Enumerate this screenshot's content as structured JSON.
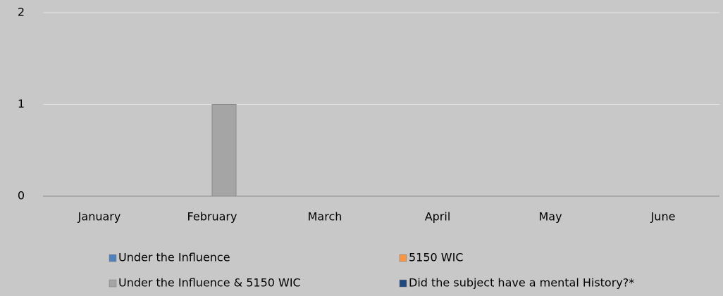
{
  "chart_data": {
    "type": "bar",
    "categories": [
      "January",
      "February",
      "March",
      "April",
      "May",
      "June"
    ],
    "series": [
      {
        "name": "Under the Influence",
        "color": "#4f81bd",
        "values": [
          0,
          0,
          0,
          0,
          0,
          0
        ]
      },
      {
        "name": "5150 WIC",
        "color": "#f79646",
        "values": [
          0,
          0,
          0,
          0,
          0,
          0
        ]
      },
      {
        "name": "Under the Influence & 5150 WIC",
        "color": "#a5a5a5",
        "values": [
          0,
          1,
          0,
          0,
          0,
          0
        ]
      },
      {
        "name": "Did the subject have a mental History?*",
        "color": "#1f497d",
        "values": [
          0,
          0,
          0,
          0,
          0,
          0
        ]
      }
    ],
    "ylim": [
      0,
      2
    ],
    "yticks": [
      0,
      1,
      2
    ],
    "grid": true
  }
}
